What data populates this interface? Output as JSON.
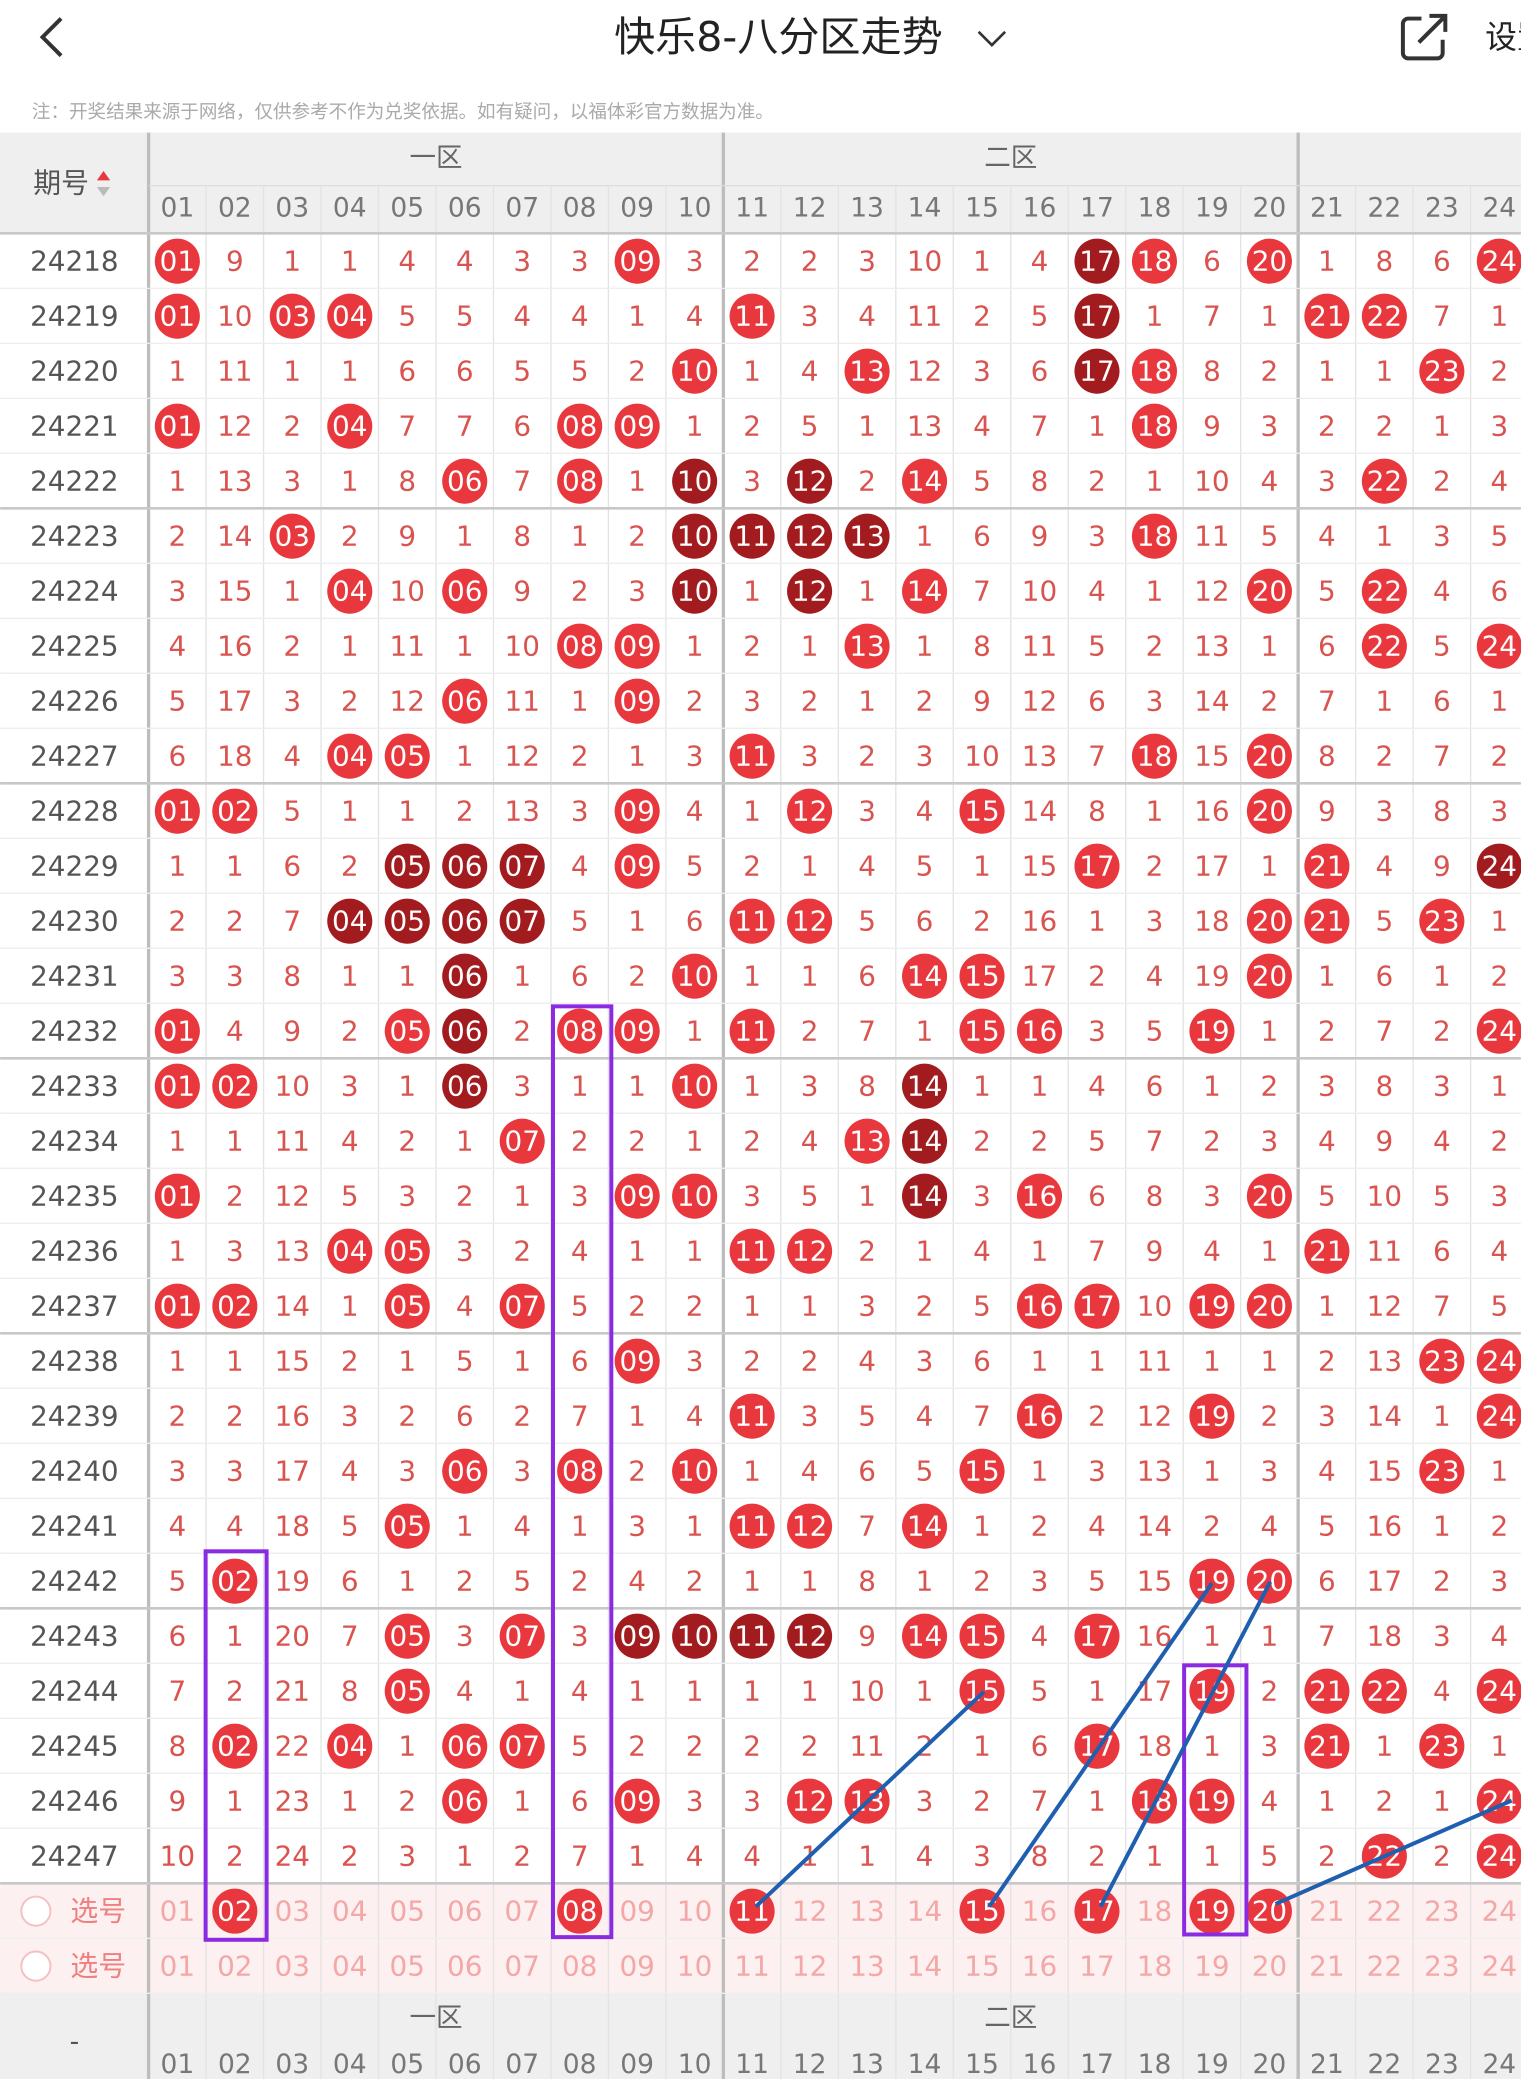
{
  "header": {
    "title": "快乐8-八分区走势",
    "settings": "设置",
    "note": "注：开奖结果来源于网络，仅供参考不作为兑奖依据。如有疑问，以福体彩官方数据为准。"
  },
  "table": {
    "issue_label": "期号",
    "zones": [
      "一区",
      "二区"
    ],
    "numbers": [
      "01",
      "02",
      "03",
      "04",
      "05",
      "06",
      "07",
      "08",
      "09",
      "10",
      "11",
      "12",
      "13",
      "14",
      "15",
      "16",
      "17",
      "18",
      "19",
      "20",
      "21",
      "22",
      "23",
      "24"
    ],
    "rows": [
      {
        "issue": "24218",
        "hits": "r.......r.......dr.r...r",
        "cells": [
          "01",
          9,
          1,
          1,
          4,
          4,
          3,
          3,
          "09",
          3,
          2,
          2,
          3,
          10,
          1,
          4,
          "17",
          "18",
          6,
          "20",
          1,
          8,
          6,
          "24"
        ]
      },
      {
        "issue": "24219",
        "hits": "r.rr......r.....d...rr..",
        "cells": [
          "01",
          10,
          "03",
          "04",
          5,
          5,
          4,
          4,
          1,
          4,
          "11",
          3,
          4,
          11,
          2,
          5,
          "17",
          1,
          7,
          1,
          "21",
          "22",
          7,
          1
        ]
      },
      {
        "issue": "24220",
        "hits": ".........r..r...dr....r.",
        "cells": [
          1,
          11,
          1,
          1,
          6,
          6,
          5,
          5,
          2,
          "10",
          1,
          4,
          "13",
          12,
          3,
          6,
          "17",
          "18",
          8,
          2,
          1,
          1,
          "23",
          2
        ]
      },
      {
        "issue": "24221",
        "hits": "r..r...rr........r......",
        "cells": [
          "01",
          12,
          2,
          "04",
          7,
          7,
          6,
          "08",
          "09",
          1,
          2,
          5,
          1,
          13,
          4,
          7,
          1,
          "18",
          9,
          3,
          2,
          2,
          1,
          3
        ]
      },
      {
        "issue": "24222",
        "hits": ".....r.r.d.d.r.......r..",
        "cells": [
          1,
          13,
          3,
          1,
          8,
          "06",
          7,
          "08",
          1,
          "10",
          3,
          "12",
          2,
          "14",
          5,
          8,
          2,
          1,
          10,
          4,
          3,
          "22",
          2,
          4
        ]
      },
      {
        "issue": "24223",
        "hits": "..r......dddd....r......",
        "cells": [
          2,
          14,
          "03",
          2,
          9,
          1,
          8,
          1,
          2,
          "10",
          "11",
          "12",
          "13",
          1,
          6,
          9,
          3,
          "18",
          11,
          5,
          4,
          1,
          3,
          5
        ]
      },
      {
        "issue": "24224",
        "hits": "...r.r...d.d.r.....r.r..",
        "cells": [
          3,
          15,
          1,
          "04",
          10,
          "06",
          9,
          2,
          3,
          "10",
          1,
          "12",
          1,
          "14",
          7,
          10,
          4,
          1,
          12,
          "20",
          5,
          "22",
          4,
          6
        ]
      },
      {
        "issue": "24225",
        "hits": ".......rr...r........r.r",
        "cells": [
          4,
          16,
          2,
          1,
          11,
          1,
          10,
          "08",
          "09",
          1,
          2,
          1,
          "13",
          1,
          8,
          11,
          5,
          2,
          13,
          1,
          6,
          "22",
          5,
          "24"
        ]
      },
      {
        "issue": "24226",
        "hits": ".....r..r...............",
        "cells": [
          5,
          17,
          3,
          2,
          12,
          "06",
          11,
          1,
          "09",
          2,
          3,
          2,
          1,
          2,
          9,
          12,
          6,
          3,
          14,
          2,
          7,
          1,
          6,
          1
        ]
      },
      {
        "issue": "24227",
        "hits": "...rr.....r......r.r....",
        "cells": [
          6,
          18,
          4,
          "04",
          "05",
          1,
          12,
          2,
          1,
          3,
          "11",
          3,
          2,
          3,
          10,
          13,
          7,
          "18",
          15,
          "20",
          8,
          2,
          7,
          2
        ]
      },
      {
        "issue": "24228",
        "hits": "rr......r..r..r....r....",
        "cells": [
          "01",
          "02",
          5,
          1,
          1,
          2,
          13,
          3,
          "09",
          4,
          1,
          "12",
          3,
          4,
          "15",
          14,
          8,
          1,
          16,
          "20",
          9,
          3,
          8,
          3
        ]
      },
      {
        "issue": "24229",
        "hits": "....ddd.r.......r...r..d",
        "cells": [
          1,
          1,
          6,
          2,
          "05",
          "06",
          "07",
          4,
          "09",
          5,
          2,
          1,
          4,
          5,
          1,
          15,
          "17",
          2,
          17,
          1,
          "21",
          4,
          9,
          "24"
        ]
      },
      {
        "issue": "24230",
        "hits": "...dddd...rr.......rr.r.",
        "cells": [
          2,
          2,
          7,
          "04",
          "05",
          "06",
          "07",
          5,
          1,
          6,
          "11",
          "12",
          5,
          6,
          2,
          16,
          1,
          3,
          18,
          "20",
          "21",
          5,
          "23",
          1
        ]
      },
      {
        "issue": "24231",
        "hits": ".....d...r...rr....r....",
        "cells": [
          3,
          3,
          8,
          1,
          1,
          "06",
          1,
          6,
          2,
          "10",
          1,
          1,
          6,
          "14",
          "15",
          17,
          2,
          4,
          19,
          "20",
          1,
          6,
          1,
          2
        ]
      },
      {
        "issue": "24232",
        "hits": "r...rd.rr.r...rr..r....r",
        "cells": [
          "01",
          4,
          9,
          2,
          "05",
          "06",
          2,
          "08",
          "09",
          1,
          "11",
          2,
          7,
          1,
          "15",
          "16",
          3,
          5,
          "19",
          1,
          2,
          7,
          2,
          "24"
        ]
      },
      {
        "issue": "24233",
        "hits": "rr...d...r...d..........",
        "cells": [
          "01",
          "02",
          10,
          3,
          1,
          "06",
          3,
          1,
          1,
          "10",
          1,
          3,
          8,
          "14",
          1,
          1,
          4,
          6,
          1,
          2,
          3,
          8,
          3,
          1
        ]
      },
      {
        "issue": "24234",
        "hits": "......r.....rd..........",
        "cells": [
          1,
          1,
          11,
          4,
          2,
          1,
          "07",
          2,
          2,
          1,
          2,
          4,
          "13",
          "14",
          2,
          2,
          5,
          7,
          2,
          3,
          4,
          9,
          4,
          2
        ]
      },
      {
        "issue": "24235",
        "hits": "r.......rr...d.r...r....",
        "cells": [
          "01",
          2,
          12,
          5,
          3,
          2,
          1,
          3,
          "09",
          "10",
          3,
          5,
          1,
          "14",
          3,
          "16",
          6,
          8,
          3,
          "20",
          5,
          10,
          5,
          3
        ]
      },
      {
        "issue": "24236",
        "hits": "...rr.....rr........r...",
        "cells": [
          1,
          3,
          13,
          "04",
          "05",
          3,
          2,
          4,
          1,
          1,
          "11",
          "12",
          2,
          1,
          4,
          1,
          7,
          9,
          4,
          1,
          "21",
          11,
          6,
          4
        ]
      },
      {
        "issue": "24237",
        "hits": "rr..r.r........rr.rr....",
        "cells": [
          "01",
          "02",
          14,
          1,
          "05",
          4,
          "07",
          5,
          2,
          2,
          1,
          1,
          3,
          2,
          5,
          "16",
          "17",
          10,
          "19",
          "20",
          1,
          12,
          7,
          5
        ]
      },
      {
        "issue": "24238",
        "hits": "........r.............rr",
        "cells": [
          1,
          1,
          15,
          2,
          1,
          5,
          1,
          6,
          "09",
          3,
          2,
          2,
          4,
          3,
          6,
          1,
          1,
          11,
          1,
          1,
          2,
          13,
          "23",
          "24"
        ]
      },
      {
        "issue": "24239",
        "hits": "..........r....r..r....r",
        "cells": [
          2,
          2,
          16,
          3,
          2,
          6,
          2,
          7,
          1,
          4,
          "11",
          3,
          5,
          4,
          7,
          "16",
          2,
          12,
          "19",
          2,
          3,
          14,
          1,
          "24"
        ]
      },
      {
        "issue": "24240",
        "hits": ".....r.r.r....r.......r.",
        "cells": [
          3,
          3,
          17,
          4,
          3,
          "06",
          3,
          "08",
          2,
          "10",
          1,
          4,
          6,
          5,
          "15",
          1,
          3,
          13,
          1,
          3,
          4,
          15,
          "23",
          1
        ]
      },
      {
        "issue": "24241",
        "hits": "....r.....rr.r..........",
        "cells": [
          4,
          4,
          18,
          5,
          "05",
          1,
          4,
          1,
          3,
          1,
          "11",
          "12",
          7,
          "14",
          1,
          2,
          4,
          14,
          2,
          4,
          5,
          16,
          1,
          2
        ]
      },
      {
        "issue": "24242",
        "hits": ".r................rr....",
        "cells": [
          5,
          "02",
          19,
          6,
          1,
          2,
          5,
          2,
          4,
          2,
          1,
          1,
          8,
          1,
          2,
          3,
          5,
          15,
          "19",
          "20",
          6,
          17,
          2,
          3
        ]
      },
      {
        "issue": "24243",
        "hits": "....r.r.dddd.rr.r.......",
        "cells": [
          6,
          1,
          20,
          7,
          "05",
          3,
          "07",
          3,
          "09",
          "10",
          "11",
          "12",
          9,
          "14",
          "15",
          4,
          "17",
          16,
          1,
          1,
          7,
          18,
          3,
          4
        ]
      },
      {
        "issue": "24244",
        "hits": "....r.........r...r.rr.r",
        "cells": [
          7,
          2,
          21,
          8,
          "05",
          4,
          1,
          4,
          1,
          1,
          1,
          1,
          10,
          1,
          "15",
          5,
          1,
          17,
          "19",
          2,
          "21",
          "22",
          4,
          "24"
        ]
      },
      {
        "issue": "24245",
        "hits": ".r.r.rr.........r...r.r.",
        "cells": [
          8,
          "02",
          22,
          "04",
          1,
          "06",
          "07",
          5,
          2,
          2,
          2,
          2,
          11,
          2,
          1,
          6,
          "17",
          18,
          1,
          3,
          "21",
          1,
          "23",
          1
        ]
      },
      {
        "issue": "24246",
        "hits": ".....r..r..rr....rr....r",
        "cells": [
          9,
          1,
          23,
          1,
          2,
          "06",
          1,
          6,
          "09",
          3,
          3,
          "12",
          "13",
          3,
          2,
          7,
          1,
          "18",
          "19",
          4,
          1,
          2,
          1,
          "24"
        ]
      },
      {
        "issue": "24247",
        "hits": ".....................r.r",
        "cells": [
          10,
          2,
          24,
          2,
          3,
          1,
          2,
          7,
          1,
          4,
          4,
          1,
          1,
          4,
          3,
          8,
          2,
          1,
          1,
          5,
          2,
          "22",
          2,
          "24"
        ]
      }
    ],
    "selection_rows": [
      {
        "label": "选号",
        "hits": ".r.....r..r...r.r.rr...."
      },
      {
        "label": "选号",
        "hits": "........................"
      }
    ],
    "footer_label": "-"
  }
}
